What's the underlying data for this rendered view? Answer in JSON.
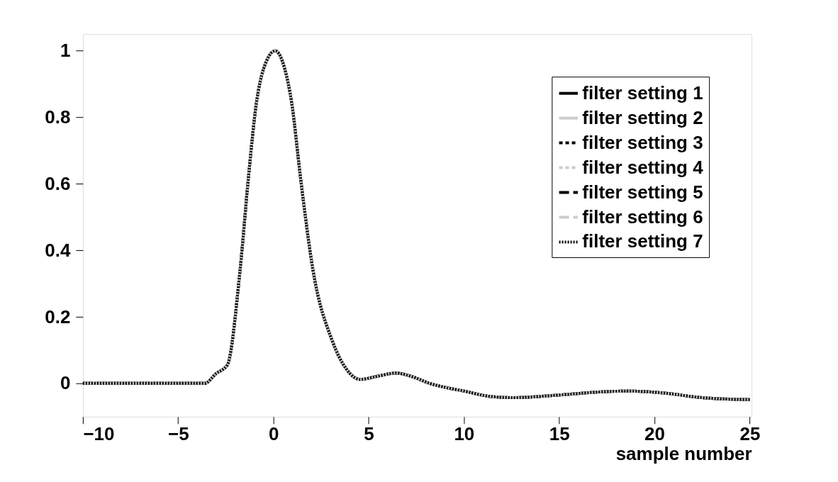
{
  "chart_data": {
    "type": "line",
    "xlabel": "sample number",
    "x": [
      -10,
      -6,
      -3.6,
      -3,
      -2.42,
      -1.75,
      -1.3,
      -0.9,
      -0.52,
      0.1,
      0.6,
      0.97,
      1.41,
      2.08,
      3.09,
      3.83,
      4.55,
      5.5,
      6.43,
      7.3,
      8.2,
      9.1,
      10,
      11.34,
      12.57,
      15,
      17.07,
      18.6,
      20.5,
      22.5,
      25
    ],
    "series": [
      {
        "name": "filter setting 1",
        "color": "#000000",
        "line_style": "solid",
        "values": [
          0,
          0,
          0,
          0.03,
          0.055,
          0.34,
          0.625,
          0.84,
          0.945,
          1.0,
          0.945,
          0.84,
          0.625,
          0.34,
          0.128,
          0.043,
          0.012,
          0.022,
          0.031,
          0.02,
          0.0,
          -0.013,
          -0.023,
          -0.039,
          -0.043,
          -0.035,
          -0.026,
          -0.023,
          -0.029,
          -0.043,
          -0.049
        ]
      },
      {
        "name": "filter setting 2",
        "color": "#cccccc",
        "line_style": "solid",
        "values": [
          0,
          0,
          0,
          0.03,
          0.055,
          0.34,
          0.625,
          0.84,
          0.945,
          1.0,
          0.945,
          0.84,
          0.625,
          0.34,
          0.128,
          0.043,
          0.012,
          0.022,
          0.031,
          0.02,
          0.0,
          -0.013,
          -0.023,
          -0.039,
          -0.043,
          -0.035,
          -0.026,
          -0.023,
          -0.029,
          -0.043,
          -0.049
        ]
      },
      {
        "name": "filter setting 3",
        "color": "#000000",
        "line_style": "dotted",
        "values": [
          0,
          0,
          0,
          0.03,
          0.055,
          0.34,
          0.625,
          0.84,
          0.945,
          1.0,
          0.945,
          0.84,
          0.625,
          0.34,
          0.128,
          0.043,
          0.012,
          0.022,
          0.031,
          0.02,
          0.0,
          -0.013,
          -0.023,
          -0.039,
          -0.043,
          -0.035,
          -0.026,
          -0.023,
          -0.029,
          -0.043,
          -0.049
        ]
      },
      {
        "name": "filter setting 4",
        "color": "#cccccc",
        "line_style": "dotted",
        "values": [
          0,
          0,
          0,
          0.03,
          0.055,
          0.34,
          0.625,
          0.84,
          0.945,
          1.0,
          0.945,
          0.84,
          0.625,
          0.34,
          0.128,
          0.043,
          0.012,
          0.022,
          0.031,
          0.02,
          0.0,
          -0.013,
          -0.023,
          -0.039,
          -0.043,
          -0.035,
          -0.026,
          -0.023,
          -0.029,
          -0.043,
          -0.049
        ]
      },
      {
        "name": "filter setting 5",
        "color": "#000000",
        "line_style": "dashed",
        "values": [
          0,
          0,
          0,
          0.03,
          0.055,
          0.34,
          0.625,
          0.84,
          0.945,
          1.0,
          0.945,
          0.84,
          0.625,
          0.34,
          0.128,
          0.043,
          0.012,
          0.022,
          0.031,
          0.02,
          0.0,
          -0.013,
          -0.023,
          -0.039,
          -0.043,
          -0.035,
          -0.026,
          -0.023,
          -0.029,
          -0.043,
          -0.049
        ]
      },
      {
        "name": "filter setting 6",
        "color": "#cccccc",
        "line_style": "dashed",
        "values": [
          0,
          0,
          0,
          0.03,
          0.055,
          0.34,
          0.625,
          0.84,
          0.945,
          1.0,
          0.945,
          0.84,
          0.625,
          0.34,
          0.128,
          0.043,
          0.012,
          0.022,
          0.031,
          0.02,
          0.0,
          -0.013,
          -0.023,
          -0.039,
          -0.043,
          -0.035,
          -0.026,
          -0.023,
          -0.029,
          -0.043,
          -0.049
        ]
      },
      {
        "name": "filter setting 7",
        "color": "#000000",
        "line_style": "dotted",
        "values": [
          0,
          0,
          0,
          0.03,
          0.055,
          0.34,
          0.625,
          0.84,
          0.945,
          1.0,
          0.945,
          0.84,
          0.625,
          0.34,
          0.128,
          0.043,
          0.012,
          0.022,
          0.031,
          0.02,
          0.0,
          -0.013,
          -0.023,
          -0.039,
          -0.043,
          -0.035,
          -0.026,
          -0.023,
          -0.029,
          -0.043,
          -0.049
        ]
      }
    ],
    "xlim": [
      -10,
      25.1
    ],
    "ylim": [
      -0.1,
      1.05
    ],
    "xticks": [
      -10,
      -5,
      0,
      5,
      10,
      15,
      20,
      25
    ],
    "yticks": [
      0,
      0.2,
      0.4,
      0.6,
      0.8,
      1
    ],
    "grid": false,
    "legend": "top right",
    "marker": "none"
  }
}
